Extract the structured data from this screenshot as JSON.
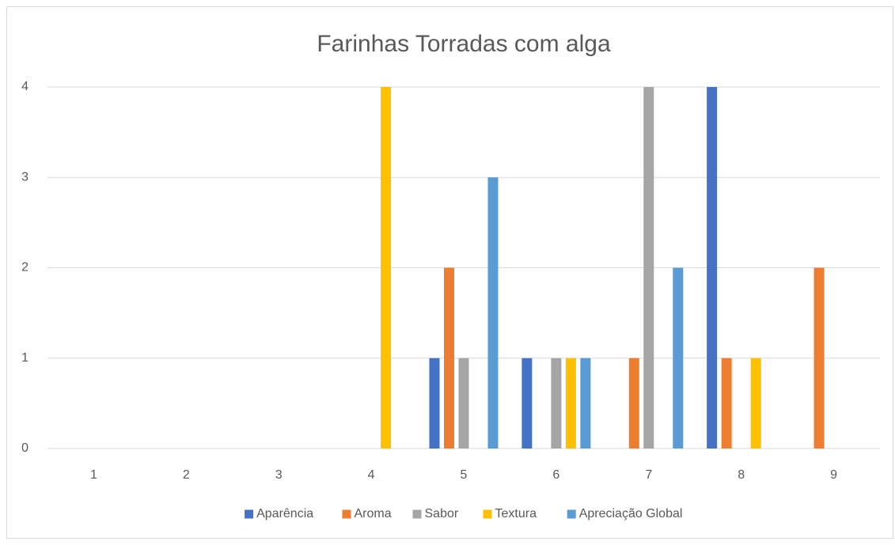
{
  "chart_data": {
    "type": "bar",
    "title": "Farinhas Torradas com alga",
    "categories": [
      "1",
      "2",
      "3",
      "4",
      "5",
      "6",
      "7",
      "8",
      "9"
    ],
    "series": [
      {
        "name": "Aparência",
        "color": "#4472c4",
        "values": [
          0,
          0,
          0,
          0,
          1,
          1,
          0,
          4,
          0
        ]
      },
      {
        "name": "Aroma",
        "color": "#ed7d31",
        "values": [
          0,
          0,
          0,
          0,
          2,
          0,
          1,
          1,
          2
        ]
      },
      {
        "name": "Sabor",
        "color": "#a5a5a5",
        "values": [
          0,
          0,
          0,
          0,
          1,
          1,
          4,
          0,
          0
        ]
      },
      {
        "name": "Textura",
        "color": "#ffc000",
        "values": [
          0,
          0,
          0,
          4,
          0,
          1,
          0,
          1,
          0
        ]
      },
      {
        "name": "Apreciação Global",
        "color": "#5b9bd5",
        "values": [
          0,
          0,
          0,
          0,
          3,
          1,
          2,
          0,
          0
        ]
      }
    ],
    "ylim": [
      0,
      4
    ],
    "yticks": [
      0,
      1,
      2,
      3,
      4
    ],
    "grid": true,
    "legend": "bottom"
  }
}
